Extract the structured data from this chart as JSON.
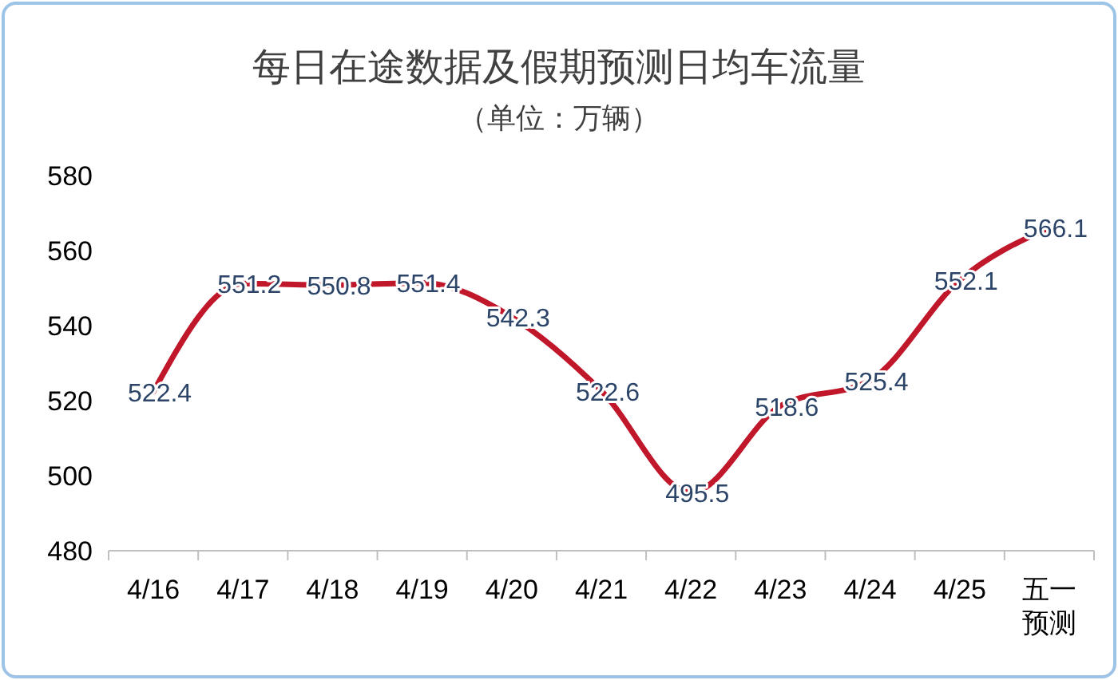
{
  "chart_data": {
    "type": "line",
    "title": "每日在途数据及假期预测日均车流量",
    "subtitle": "（单位：万辆）",
    "categories": [
      "4/16",
      "4/17",
      "4/18",
      "4/19",
      "4/20",
      "4/21",
      "4/22",
      "4/23",
      "4/24",
      "4/25",
      "五一预测"
    ],
    "series": [
      {
        "color": "#c0172b",
        "values": [
          522.4,
          551.2,
          550.8,
          551.4,
          542.3,
          522.6,
          495.5,
          518.6,
          525.4,
          552.1,
          566.1
        ]
      }
    ],
    "ylim": [
      480,
      580
    ],
    "yticks": [
      480,
      500,
      520,
      540,
      560,
      580
    ],
    "grid": false,
    "marker": "none",
    "line_style": "solid",
    "data_labels": true
  }
}
